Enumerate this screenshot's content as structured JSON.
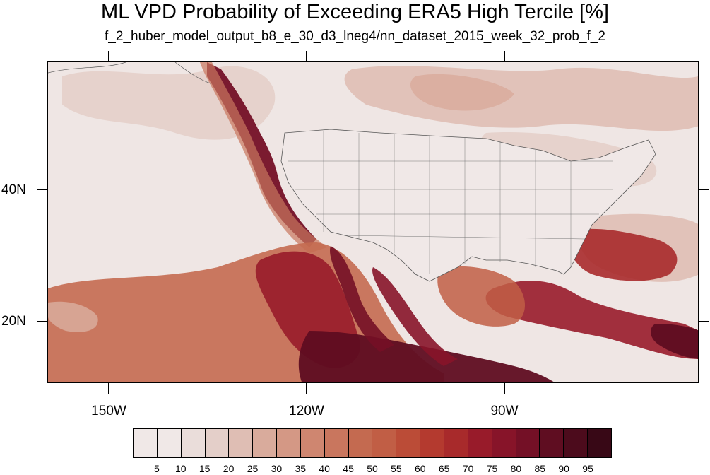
{
  "title": "ML VPD Probability of Exceeding ERA5 High Tercile [%]",
  "subtitle": "f_2_huber_model_output_b8_e_30_d3_lneg4/nn_dataset_2015_week_32_prob_f_2",
  "map": {
    "lon_range": [
      -160,
      -62
    ],
    "lat_range": [
      11,
      60
    ],
    "lat_labels": [
      "40N",
      "20N"
    ],
    "lon_labels": [
      "150W",
      "120W",
      "90W"
    ],
    "background_color": "#efe6e4"
  },
  "colorbar": {
    "levels": [
      "5",
      "10",
      "15",
      "20",
      "25",
      "30",
      "35",
      "40",
      "45",
      "50",
      "55",
      "60",
      "65",
      "70",
      "75",
      "80",
      "85",
      "90",
      "95"
    ],
    "colors": [
      "#f0e8e7",
      "#eaddda",
      "#e4cfc9",
      "#dfbeb4",
      "#d9ab9c",
      "#d49885",
      "#cf8670",
      "#c9765e",
      "#c46a50",
      "#c15e45",
      "#bb4c37",
      "#b43a2f",
      "#a82a2b",
      "#981b2a",
      "#871429",
      "#741026",
      "#5f0d21",
      "#4c0b1c",
      "#380816"
    ]
  }
}
